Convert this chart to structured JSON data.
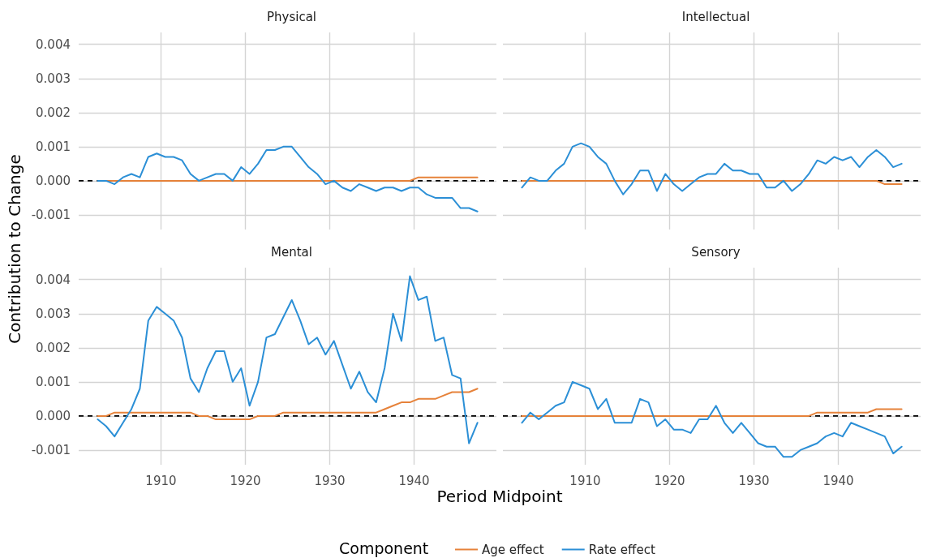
{
  "chart_data": [
    {
      "type": "line",
      "title": "Physical",
      "ylabel": "Contribution to Change",
      "legend": "bottom",
      "legend_title": "Component",
      "grid": true,
      "tick_labels": "y",
      "marker": "none",
      "line_style": "solid",
      "xlim": [
        1900.25,
        1949.75
      ],
      "xticks": [
        1910,
        1920,
        1930,
        1940
      ],
      "ylim": [
        -0.00143,
        0.00435
      ],
      "yticks": [
        -0.001,
        {
          "value": 0,
          "label": "0.000"
        },
        0.001,
        0.002,
        0.003,
        0.004
      ],
      "ref_lines": [
        {
          "axis": "y",
          "value": 0,
          "color": "#000000",
          "line_style": "dashed"
        }
      ],
      "x": [
        1902.5,
        1903.5,
        1904.5,
        1905.5,
        1906.5,
        1907.5,
        1908.5,
        1909.5,
        1910.5,
        1911.5,
        1912.5,
        1913.5,
        1914.5,
        1915.5,
        1916.5,
        1917.5,
        1918.5,
        1919.5,
        1920.5,
        1921.5,
        1922.5,
        1923.5,
        1924.5,
        1925.5,
        1926.5,
        1927.5,
        1928.5,
        1929.5,
        1930.5,
        1931.5,
        1932.5,
        1933.5,
        1934.5,
        1935.5,
        1936.5,
        1937.5,
        1938.5,
        1939.5,
        1940.5,
        1941.5,
        1942.5,
        1943.5,
        1944.5,
        1945.5,
        1946.5,
        1947.5
      ],
      "series": [
        {
          "name": "Age effect",
          "color": "#e6823a",
          "values": [
            0,
            0,
            0,
            0,
            0,
            0,
            0,
            0,
            0,
            0,
            0,
            0,
            0,
            0,
            0,
            0,
            0,
            0,
            0,
            0,
            0,
            0,
            0,
            0,
            0,
            0,
            0,
            0,
            0,
            0,
            0,
            0,
            0,
            0,
            0,
            0,
            0,
            0,
            0.0001,
            0.0001,
            0.0001,
            0.0001,
            0.0001,
            0.0001,
            0.0001,
            0.0001
          ]
        },
        {
          "name": "Rate effect",
          "color": "#2b8fd6",
          "values": [
            0,
            0,
            -0.0001,
            0.0001,
            0.0002,
            0.0001,
            0.0007,
            0.0008,
            0.0007,
            0.0007,
            0.0006,
            0.0002,
            0,
            0.0001,
            0.0002,
            0.0002,
            0,
            0.0004,
            0.0002,
            0.0005,
            0.0009,
            0.0009,
            0.001,
            0.001,
            0.0007,
            0.0004,
            0.0002,
            -0.0001,
            0,
            -0.0002,
            -0.0003,
            -0.0001,
            -0.0002,
            -0.0003,
            -0.0002,
            -0.0002,
            -0.0003,
            -0.0002,
            -0.0002,
            -0.0004,
            -0.0005,
            -0.0005,
            -0.0005,
            -0.0008,
            -0.0008,
            -0.0009
          ]
        }
      ]
    },
    {
      "type": "line",
      "title": "Intellectual",
      "grid": true,
      "tick_labels": false,
      "marker": "none",
      "line_style": "solid",
      "xlim": [
        1900.25,
        1949.75
      ],
      "xticks": [
        1910,
        1920,
        1930,
        1940
      ],
      "ylim": [
        -0.00143,
        0.00435
      ],
      "yticks": [
        -0.001,
        0,
        0.001,
        0.002,
        0.003,
        0.004
      ],
      "ref_lines": [
        {
          "axis": "y",
          "value": 0,
          "color": "#000000",
          "line_style": "dashed"
        }
      ],
      "x": [
        1902.5,
        1903.5,
        1904.5,
        1905.5,
        1906.5,
        1907.5,
        1908.5,
        1909.5,
        1910.5,
        1911.5,
        1912.5,
        1913.5,
        1914.5,
        1915.5,
        1916.5,
        1917.5,
        1918.5,
        1919.5,
        1920.5,
        1921.5,
        1922.5,
        1923.5,
        1924.5,
        1925.5,
        1926.5,
        1927.5,
        1928.5,
        1929.5,
        1930.5,
        1931.5,
        1932.5,
        1933.5,
        1934.5,
        1935.5,
        1936.5,
        1937.5,
        1938.5,
        1939.5,
        1940.5,
        1941.5,
        1942.5,
        1943.5,
        1944.5,
        1945.5,
        1946.5,
        1947.5
      ],
      "series": [
        {
          "color": "#e6823a",
          "values": [
            0,
            0,
            0,
            0,
            0,
            0,
            0,
            0,
            0,
            0,
            0,
            0,
            0,
            0,
            0,
            0,
            0,
            0,
            0,
            0,
            0,
            0,
            0,
            0,
            0,
            0,
            0,
            0,
            0,
            0,
            0,
            0,
            0,
            0,
            0,
            0,
            0,
            0,
            0,
            0,
            0,
            0,
            0,
            -0.0001,
            -0.0001,
            -0.0001
          ]
        },
        {
          "color": "#2b8fd6",
          "values": [
            -0.0002,
            0.0001,
            0,
            0,
            0.0003,
            0.0005,
            0.001,
            0.0011,
            0.001,
            0.0007,
            0.0005,
            0,
            -0.0004,
            -0.0001,
            0.0003,
            0.0003,
            -0.0003,
            0.0002,
            -0.0001,
            -0.0003,
            -0.0001,
            0.0001,
            0.0002,
            0.0002,
            0.0005,
            0.0003,
            0.0003,
            0.0002,
            0.0002,
            -0.0002,
            -0.0002,
            0,
            -0.0003,
            -0.0001,
            0.0002,
            0.0006,
            0.0005,
            0.0007,
            0.0006,
            0.0007,
            0.0004,
            0.0007,
            0.0009,
            0.0007,
            0.0004,
            0.0005
          ]
        }
      ]
    },
    {
      "type": "line",
      "title": "Mental",
      "xlabel": "Period Midpoint",
      "grid": true,
      "marker": "none",
      "line_style": "solid",
      "xlim": [
        1900.25,
        1949.75
      ],
      "xticks": [
        1910,
        1920,
        1930,
        1940
      ],
      "ylim": [
        -0.00143,
        0.00435
      ],
      "yticks": [
        -0.001,
        {
          "value": 0,
          "label": "0.000"
        },
        0.001,
        0.002,
        0.003,
        0.004
      ],
      "ref_lines": [
        {
          "axis": "y",
          "value": 0,
          "color": "#000000",
          "line_style": "dashed"
        }
      ],
      "x": [
        1902.5,
        1903.5,
        1904.5,
        1905.5,
        1906.5,
        1907.5,
        1908.5,
        1909.5,
        1910.5,
        1911.5,
        1912.5,
        1913.5,
        1914.5,
        1915.5,
        1916.5,
        1917.5,
        1918.5,
        1919.5,
        1920.5,
        1921.5,
        1922.5,
        1923.5,
        1924.5,
        1925.5,
        1926.5,
        1927.5,
        1928.5,
        1929.5,
        1930.5,
        1931.5,
        1932.5,
        1933.5,
        1934.5,
        1935.5,
        1936.5,
        1937.5,
        1938.5,
        1939.5,
        1940.5,
        1941.5,
        1942.5,
        1943.5,
        1944.5,
        1945.5,
        1946.5,
        1947.5
      ],
      "series": [
        {
          "color": "#e6823a",
          "values": [
            0,
            0,
            0.0001,
            0.0001,
            0.0001,
            0.0001,
            0.0001,
            0.0001,
            0.0001,
            0.0001,
            0.0001,
            0.0001,
            0,
            0,
            -0.0001,
            -0.0001,
            -0.0001,
            -0.0001,
            -0.0001,
            0,
            0,
            0,
            0.0001,
            0.0001,
            0.0001,
            0.0001,
            0.0001,
            0.0001,
            0.0001,
            0.0001,
            0.0001,
            0.0001,
            0.0001,
            0.0001,
            0.0002,
            0.0003,
            0.0004,
            0.0004,
            0.0005,
            0.0005,
            0.0005,
            0.0006,
            0.0007,
            0.0007,
            0.0007,
            0.0008
          ]
        },
        {
          "color": "#2b8fd6",
          "values": [
            -0.0001,
            -0.0003,
            -0.0006,
            -0.0002,
            0.0002,
            0.0008,
            0.0028,
            0.0032,
            0.003,
            0.0028,
            0.0023,
            0.0011,
            0.0007,
            0.0014,
            0.0019,
            0.0019,
            0.001,
            0.0014,
            0.0003,
            0.001,
            0.0023,
            0.0024,
            0.0029,
            0.0034,
            0.0028,
            0.0021,
            0.0023,
            0.0018,
            0.0022,
            0.0015,
            0.0008,
            0.0013,
            0.0007,
            0.0004,
            0.0014,
            0.003,
            0.0022,
            0.0041,
            0.0034,
            0.0035,
            0.0022,
            0.0023,
            0.0012,
            0.0011,
            -0.0008,
            -0.0002
          ]
        }
      ]
    },
    {
      "type": "line",
      "title": "Sensory",
      "grid": true,
      "tick_labels": "x",
      "marker": "none",
      "line_style": "solid",
      "xlim": [
        1900.25,
        1949.75
      ],
      "xticks": [
        1910,
        1920,
        1930,
        1940
      ],
      "ylim": [
        -0.00143,
        0.00435
      ],
      "yticks": [
        -0.001,
        0,
        0.001,
        0.002,
        0.003,
        0.004
      ],
      "ref_lines": [
        {
          "axis": "y",
          "value": 0,
          "color": "#000000",
          "line_style": "dashed"
        }
      ],
      "x": [
        1902.5,
        1903.5,
        1904.5,
        1905.5,
        1906.5,
        1907.5,
        1908.5,
        1909.5,
        1910.5,
        1911.5,
        1912.5,
        1913.5,
        1914.5,
        1915.5,
        1916.5,
        1917.5,
        1918.5,
        1919.5,
        1920.5,
        1921.5,
        1922.5,
        1923.5,
        1924.5,
        1925.5,
        1926.5,
        1927.5,
        1928.5,
        1929.5,
        1930.5,
        1931.5,
        1932.5,
        1933.5,
        1934.5,
        1935.5,
        1936.5,
        1937.5,
        1938.5,
        1939.5,
        1940.5,
        1941.5,
        1942.5,
        1943.5,
        1944.5,
        1945.5,
        1946.5,
        1947.5
      ],
      "series": [
        {
          "color": "#e6823a",
          "values": [
            0,
            0,
            0,
            0,
            0,
            0,
            0,
            0,
            0,
            0,
            0,
            0,
            0,
            0,
            0,
            0,
            0,
            0,
            0,
            0,
            0,
            0,
            0,
            0,
            0,
            0,
            0,
            0,
            0,
            0,
            0,
            0,
            0,
            0,
            0,
            0.0001,
            0.0001,
            0.0001,
            0.0001,
            0.0001,
            0.0001,
            0.0001,
            0.0002,
            0.0002,
            0.0002,
            0.0002
          ]
        },
        {
          "color": "#2b8fd6",
          "values": [
            -0.0002,
            0.0001,
            -0.0001,
            0.0001,
            0.0003,
            0.0004,
            0.001,
            0.0009,
            0.0008,
            0.0002,
            0.0005,
            -0.0002,
            -0.0002,
            -0.0002,
            0.0005,
            0.0004,
            -0.0003,
            -0.0001,
            -0.0004,
            -0.0004,
            -0.0005,
            -0.0001,
            -0.0001,
            0.0003,
            -0.0002,
            -0.0005,
            -0.0002,
            -0.0005,
            -0.0008,
            -0.0009,
            -0.0009,
            -0.0012,
            -0.0012,
            -0.001,
            -0.0009,
            -0.0008,
            -0.0006,
            -0.0005,
            -0.0006,
            -0.0002,
            -0.0003,
            -0.0004,
            -0.0005,
            -0.0006,
            -0.0011,
            -0.0009
          ]
        }
      ]
    }
  ]
}
